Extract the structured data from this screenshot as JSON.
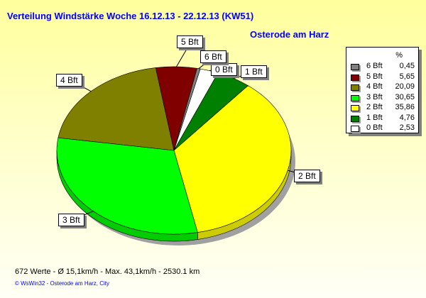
{
  "chart_data": {
    "type": "pie",
    "title": "Verteilung Windstärke  Woche 16.12.13 - 22.12.13 (KW51)",
    "subtitle": "Osterode am Harz",
    "legend_header": "%",
    "legend_position": "right",
    "slices": [
      {
        "label": "0 Bft",
        "value": 2.53,
        "value_text": "2,53",
        "color": "#ffffff"
      },
      {
        "label": "1 Bft",
        "value": 4.76,
        "value_text": "4,76",
        "color": "#008000"
      },
      {
        "label": "2 Bft",
        "value": 35.86,
        "value_text": "35,86",
        "color": "#ffff00"
      },
      {
        "label": "3 Bft",
        "value": 30.65,
        "value_text": "30,65",
        "color": "#00ff00"
      },
      {
        "label": "4 Bft",
        "value": 20.09,
        "value_text": "20,09",
        "color": "#808000"
      },
      {
        "label": "5 Bft",
        "value": 5.65,
        "value_text": "5,65",
        "color": "#800000"
      },
      {
        "label": "6 Bft",
        "value": 0.45,
        "value_text": "0,45",
        "color": "#808080"
      }
    ],
    "legend_order": [
      6,
      5,
      4,
      3,
      2,
      1,
      0
    ]
  },
  "footer": {
    "stats": "672 Werte   -   Ø 15,1km/h  -  Max. 43,1km/h   -   2530.1 km",
    "credit": "© WsWin32   -   Osterode am Harz, City"
  }
}
